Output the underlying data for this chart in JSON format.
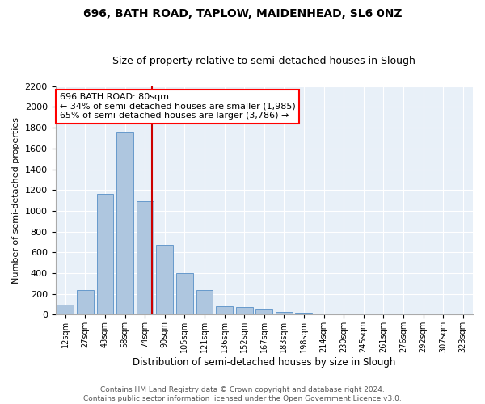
{
  "title1": "696, BATH ROAD, TAPLOW, MAIDENHEAD, SL6 0NZ",
  "title2": "Size of property relative to semi-detached houses in Slough",
  "xlabel": "Distribution of semi-detached houses by size in Slough",
  "ylabel": "Number of semi-detached properties",
  "bar_color": "#aec6df",
  "bar_edge_color": "#6699cc",
  "background_color": "#e8f0f8",
  "grid_color": "#ffffff",
  "annotation_text": "696 BATH ROAD: 80sqm\n← 34% of semi-detached houses are smaller (1,985)\n65% of semi-detached houses are larger (3,786) →",
  "vline_color": "#cc0000",
  "categories": [
    "12sqm",
    "27sqm",
    "43sqm",
    "58sqm",
    "74sqm",
    "90sqm",
    "105sqm",
    "121sqm",
    "136sqm",
    "152sqm",
    "167sqm",
    "183sqm",
    "198sqm",
    "214sqm",
    "230sqm",
    "245sqm",
    "261sqm",
    "276sqm",
    "292sqm",
    "307sqm",
    "323sqm"
  ],
  "values": [
    95,
    240,
    1160,
    1760,
    1090,
    670,
    400,
    235,
    85,
    75,
    50,
    30,
    20,
    15,
    0,
    0,
    0,
    0,
    0,
    0,
    0
  ],
  "ylim": [
    0,
    2200
  ],
  "yticks": [
    0,
    200,
    400,
    600,
    800,
    1000,
    1200,
    1400,
    1600,
    1800,
    2000,
    2200
  ],
  "footer": "Contains HM Land Registry data © Crown copyright and database right 2024.\nContains public sector information licensed under the Open Government Licence v3.0.",
  "title_fontsize": 10,
  "subtitle_fontsize": 9,
  "annot_fontsize": 8,
  "footer_fontsize": 6.5
}
